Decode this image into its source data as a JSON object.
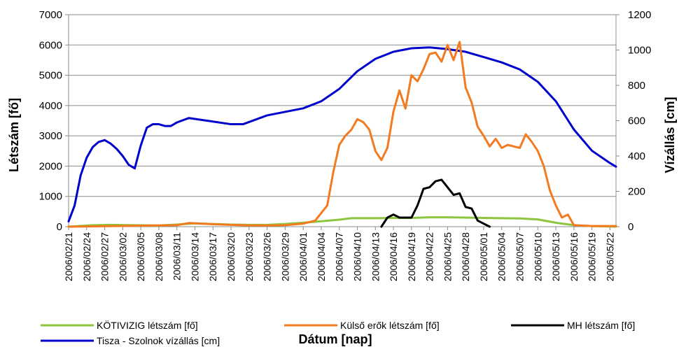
{
  "chart_data": {
    "type": "line",
    "title": "",
    "xlabel": "Dátum [nap]",
    "ylabel_left": "Létszám [fő]",
    "ylabel_right": "Vízállás [cm]",
    "ylim_left": [
      0,
      7000
    ],
    "ylim_right": [
      0,
      1200
    ],
    "yticks_left": [
      "0",
      "1000",
      "2000",
      "3000",
      "4000",
      "5000",
      "6000",
      "7000"
    ],
    "yticks_right": [
      "0",
      "200",
      "400",
      "600",
      "800",
      "1000",
      "1200"
    ],
    "grid": "horizontal",
    "legend_position": "bottom",
    "x_start": "2006/02/21",
    "x_ticks": [
      "2006/02/21",
      "2006/02/24",
      "2006/02/27",
      "2006/03/02",
      "2006/03/05",
      "2006/03/08",
      "2006/03/11",
      "2006/03/14",
      "2006/03/17",
      "2006/03/20",
      "2006/03/23",
      "2006/03/26",
      "2006/03/29",
      "2006/04/01",
      "2006/04/04",
      "2006/04/07",
      "2006/04/10",
      "2006/04/13",
      "2006/04/16",
      "2006/04/19",
      "2006/04/22",
      "2006/04/25",
      "2006/04/28",
      "2006/05/01",
      "2006/05/04",
      "2006/05/07",
      "2006/05/10",
      "2006/05/13",
      "2006/05/16",
      "2006/05/19",
      "2006/05/22"
    ],
    "series": [
      {
        "name": "KÖTIVIZIG létszám [fő]",
        "axis": "left",
        "color": "#8cc63f",
        "points": [
          [
            "2006/02/21",
            0
          ],
          [
            "2006/02/25",
            50
          ],
          [
            "2006/02/28",
            60
          ],
          [
            "2006/03/04",
            50
          ],
          [
            "2006/03/08",
            40
          ],
          [
            "2006/03/11",
            70
          ],
          [
            "2006/03/14",
            110
          ],
          [
            "2006/03/17",
            90
          ],
          [
            "2006/03/20",
            70
          ],
          [
            "2006/03/23",
            60
          ],
          [
            "2006/03/26",
            60
          ],
          [
            "2006/03/29",
            90
          ],
          [
            "2006/04/01",
            130
          ],
          [
            "2006/04/04",
            180
          ],
          [
            "2006/04/07",
            230
          ],
          [
            "2006/04/09",
            280
          ],
          [
            "2006/04/13",
            280
          ],
          [
            "2006/04/16",
            290
          ],
          [
            "2006/04/19",
            290
          ],
          [
            "2006/04/22",
            310
          ],
          [
            "2006/04/25",
            310
          ],
          [
            "2006/04/28",
            300
          ],
          [
            "2006/05/01",
            290
          ],
          [
            "2006/05/04",
            280
          ],
          [
            "2006/05/07",
            270
          ],
          [
            "2006/05/10",
            240
          ],
          [
            "2006/05/13",
            130
          ],
          [
            "2006/05/16",
            50
          ],
          [
            "2006/05/19",
            20
          ],
          [
            "2006/05/23",
            0
          ]
        ]
      },
      {
        "name": "Külső erők létszám [fő]",
        "axis": "left",
        "color": "#f47a20",
        "points": [
          [
            "2006/02/21",
            0
          ],
          [
            "2006/03/11",
            50
          ],
          [
            "2006/03/13",
            120
          ],
          [
            "2006/03/15",
            100
          ],
          [
            "2006/03/17",
            80
          ],
          [
            "2006/03/20",
            60
          ],
          [
            "2006/03/23",
            40
          ],
          [
            "2006/03/26",
            40
          ],
          [
            "2006/03/29",
            50
          ],
          [
            "2006/04/01",
            100
          ],
          [
            "2006/04/03",
            200
          ],
          [
            "2006/04/05",
            700
          ],
          [
            "2006/04/06",
            1800
          ],
          [
            "2006/04/07",
            2700
          ],
          [
            "2006/04/08",
            3000
          ],
          [
            "2006/04/09",
            3200
          ],
          [
            "2006/04/10",
            3550
          ],
          [
            "2006/04/11",
            3450
          ],
          [
            "2006/04/12",
            3200
          ],
          [
            "2006/04/13",
            2500
          ],
          [
            "2006/04/14",
            2200
          ],
          [
            "2006/04/15",
            2600
          ],
          [
            "2006/04/16",
            3800
          ],
          [
            "2006/04/17",
            4500
          ],
          [
            "2006/04/18",
            3900
          ],
          [
            "2006/04/19",
            5000
          ],
          [
            "2006/04/20",
            4800
          ],
          [
            "2006/04/21",
            5200
          ],
          [
            "2006/04/22",
            5700
          ],
          [
            "2006/04/23",
            5750
          ],
          [
            "2006/04/24",
            5450
          ],
          [
            "2006/04/25",
            6000
          ],
          [
            "2006/04/26",
            5500
          ],
          [
            "2006/04/27",
            6100
          ],
          [
            "2006/04/28",
            4600
          ],
          [
            "2006/04/29",
            4100
          ],
          [
            "2006/04/30",
            3300
          ],
          [
            "2006/05/01",
            3000
          ],
          [
            "2006/05/02",
            2650
          ],
          [
            "2006/05/03",
            2900
          ],
          [
            "2006/05/04",
            2600
          ],
          [
            "2006/05/05",
            2700
          ],
          [
            "2006/05/06",
            2650
          ],
          [
            "2006/05/07",
            2600
          ],
          [
            "2006/05/08",
            3050
          ],
          [
            "2006/05/09",
            2800
          ],
          [
            "2006/05/10",
            2500
          ],
          [
            "2006/05/11",
            2000
          ],
          [
            "2006/05/12",
            1200
          ],
          [
            "2006/05/13",
            700
          ],
          [
            "2006/05/14",
            300
          ],
          [
            "2006/05/15",
            400
          ],
          [
            "2006/05/16",
            50
          ],
          [
            "2006/05/19",
            20
          ],
          [
            "2006/05/23",
            20
          ]
        ]
      },
      {
        "name": "MH létszám [fő]",
        "axis": "left",
        "color": "#000000",
        "points": [
          [
            "2006/04/14",
            0
          ],
          [
            "2006/04/15",
            300
          ],
          [
            "2006/04/16",
            400
          ],
          [
            "2006/04/17",
            300
          ],
          [
            "2006/04/18",
            300
          ],
          [
            "2006/04/19",
            300
          ],
          [
            "2006/04/20",
            700
          ],
          [
            "2006/04/21",
            1250
          ],
          [
            "2006/04/22",
            1300
          ],
          [
            "2006/04/23",
            1500
          ],
          [
            "2006/04/24",
            1550
          ],
          [
            "2006/04/25",
            1300
          ],
          [
            "2006/04/26",
            1050
          ],
          [
            "2006/04/27",
            1100
          ],
          [
            "2006/04/28",
            650
          ],
          [
            "2006/04/29",
            600
          ],
          [
            "2006/04/30",
            200
          ],
          [
            "2006/05/01",
            100
          ],
          [
            "2006/05/02",
            0
          ]
        ]
      },
      {
        "name": "Tisza - Szolnok vízállás [cm]",
        "axis": "right",
        "color": "#0000cc",
        "points": [
          [
            "2006/02/21",
            30
          ],
          [
            "2006/02/22",
            120
          ],
          [
            "2006/02/23",
            290
          ],
          [
            "2006/02/24",
            390
          ],
          [
            "2006/02/25",
            450
          ],
          [
            "2006/02/26",
            480
          ],
          [
            "2006/02/27",
            490
          ],
          [
            "2006/02/28",
            470
          ],
          [
            "2006/03/01",
            440
          ],
          [
            "2006/03/02",
            400
          ],
          [
            "2006/03/03",
            350
          ],
          [
            "2006/03/04",
            330
          ],
          [
            "2006/03/05",
            460
          ],
          [
            "2006/03/06",
            560
          ],
          [
            "2006/03/07",
            580
          ],
          [
            "2006/03/08",
            580
          ],
          [
            "2006/03/09",
            570
          ],
          [
            "2006/03/10",
            570
          ],
          [
            "2006/03/11",
            590
          ],
          [
            "2006/03/13",
            615
          ],
          [
            "2006/03/16",
            600
          ],
          [
            "2006/03/20",
            580
          ],
          [
            "2006/03/22",
            580
          ],
          [
            "2006/03/26",
            630
          ],
          [
            "2006/04/01",
            670
          ],
          [
            "2006/04/04",
            710
          ],
          [
            "2006/04/07",
            780
          ],
          [
            "2006/04/10",
            880
          ],
          [
            "2006/04/13",
            950
          ],
          [
            "2006/04/16",
            990
          ],
          [
            "2006/04/19",
            1010
          ],
          [
            "2006/04/22",
            1015
          ],
          [
            "2006/04/25",
            1005
          ],
          [
            "2006/04/28",
            990
          ],
          [
            "2006/05/01",
            960
          ],
          [
            "2006/05/04",
            930
          ],
          [
            "2006/05/07",
            890
          ],
          [
            "2006/05/10",
            820
          ],
          [
            "2006/05/13",
            710
          ],
          [
            "2006/05/16",
            550
          ],
          [
            "2006/05/19",
            430
          ],
          [
            "2006/05/22",
            360
          ],
          [
            "2006/05/23",
            340
          ]
        ]
      }
    ]
  }
}
